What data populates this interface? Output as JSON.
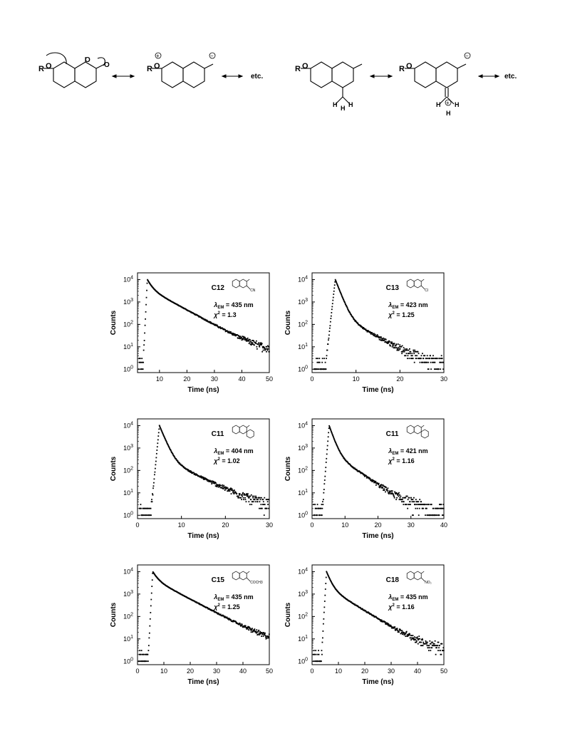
{
  "scheme": {
    "row": [
      {
        "r_label": "R",
        "o_label": "O",
        "etc_label": "etc."
      },
      {
        "r_label": "R",
        "o_label": "O",
        "etc_label": "etc."
      }
    ],
    "h_label": "H",
    "plus_label": "+",
    "minus_label": "−",
    "ring_o_label": "O"
  },
  "common": {
    "ylabel": "Counts",
    "xlabel": "Time (ns)",
    "lambda_prefix": "λ",
    "lambda_sub": "EM",
    "chi_label": "χ",
    "chi_sup": "2",
    "yticks": [
      "10",
      "10",
      "10",
      "10",
      "10"
    ],
    "ytick_exps": [
      "0",
      "1",
      "2",
      "3",
      "4"
    ]
  },
  "chart_data": [
    {
      "type": "scatter",
      "compound": "C12",
      "substituent": "CN",
      "lambda": "= 435 nm",
      "chi": "= 1.3",
      "xlim": [
        2,
        50
      ],
      "xticks": [
        10,
        20,
        30,
        40,
        50
      ],
      "ylim_log10": [
        -0.15,
        4.3
      ],
      "decay": {
        "onset": 4.0,
        "peak_t": 5.6,
        "peak_log10": 4.0,
        "amp1": 0.6,
        "tau1": 1.4,
        "amp2": 0.4,
        "tau2": 6.5,
        "baseline": 4
      }
    },
    {
      "type": "scatter",
      "compound": "C13",
      "substituent": "Cl",
      "lambda": "= 423 nm",
      "chi": "= 1.25",
      "xlim": [
        0,
        30
      ],
      "xticks": [
        0,
        10,
        20,
        30
      ],
      "ylim_log10": [
        -0.15,
        4.3
      ],
      "decay": {
        "onset": 3.0,
        "peak_t": 5.3,
        "peak_log10": 4.0,
        "amp1": 0.97,
        "tau1": 0.85,
        "amp2": 0.03,
        "tau2": 4.0,
        "baseline": 1.2
      }
    },
    {
      "type": "scatter",
      "compound": "C11",
      "substituent": "",
      "lambda": "= 404 nm",
      "chi": "= 1.02",
      "xlim": [
        0,
        30
      ],
      "xticks": [
        0,
        10,
        20,
        30
      ],
      "ylim_log10": [
        -0.15,
        4.3
      ],
      "decay": {
        "onset": 3.0,
        "peak_t": 5.0,
        "peak_log10": 4.0,
        "amp1": 0.96,
        "tau1": 0.9,
        "amp2": 0.04,
        "tau2": 4.5,
        "baseline": 1.5
      }
    },
    {
      "type": "scatter",
      "compound": "C11",
      "substituent": "",
      "lambda": "= 421 nm",
      "chi": "= 1.16",
      "xlim": [
        0,
        40
      ],
      "xticks": [
        0,
        10,
        20,
        30,
        40
      ],
      "ylim_log10": [
        -0.15,
        4.3
      ],
      "decay": {
        "onset": 3.0,
        "peak_t": 5.2,
        "peak_log10": 4.0,
        "amp1": 0.93,
        "tau1": 1.0,
        "amp2": 0.07,
        "tau2": 4.3,
        "baseline": 1.5
      }
    },
    {
      "type": "scatter",
      "compound": "C15",
      "substituent": "COCH3",
      "lambda": "= 435 nm",
      "chi": "= 1.25",
      "xlim": [
        0,
        50
      ],
      "xticks": [
        0,
        10,
        20,
        30,
        40,
        50
      ],
      "ylim_log10": [
        -0.15,
        4.3
      ],
      "decay": {
        "onset": 4.0,
        "peak_t": 5.8,
        "peak_log10": 4.0,
        "amp1": 0.55,
        "tau1": 1.5,
        "amp2": 0.45,
        "tau2": 7.0,
        "baseline": 4
      }
    },
    {
      "type": "scatter",
      "compound": "C18",
      "substituent": "NO₂",
      "lambda": "= 435 nm",
      "chi": "= 1.16",
      "xlim": [
        0,
        50
      ],
      "xticks": [
        0,
        10,
        20,
        30,
        40,
        50
      ],
      "ylim_log10": [
        -0.15,
        4.3
      ],
      "decay": {
        "onset": 3.5,
        "peak_t": 5.5,
        "peak_log10": 4.0,
        "amp1": 0.8,
        "tau1": 1.3,
        "amp2": 0.2,
        "tau2": 6.0,
        "baseline": 3
      }
    }
  ]
}
